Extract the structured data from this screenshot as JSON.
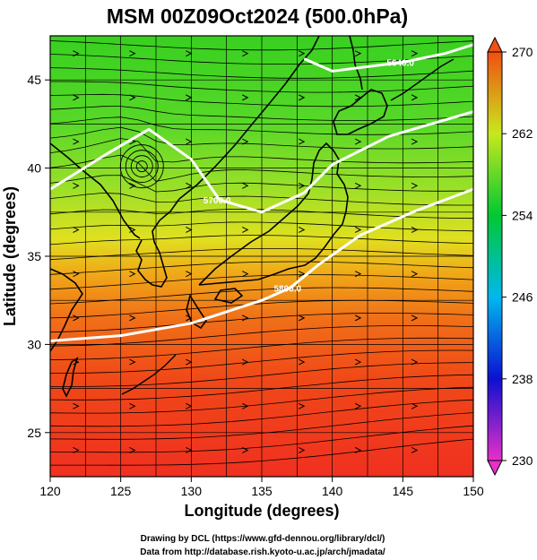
{
  "title": "MSM 00Z09Oct2024 (500.0hPa)",
  "chart_data": {
    "type": "heatmap",
    "title": "MSM 00Z09Oct2024 (500.0hPa)",
    "xlabel": "Longitude (degrees)",
    "ylabel": "Latitude  (degrees)",
    "xlim": [
      120,
      150
    ],
    "ylim": [
      22.5,
      47.5
    ],
    "xticks": [
      120,
      125,
      130,
      135,
      140,
      145,
      150
    ],
    "yticks": [
      25,
      30,
      35,
      40,
      45
    ],
    "grid": true,
    "colorbar": {
      "min": 230,
      "max": 270,
      "ticks": [
        230,
        238,
        246,
        254,
        262,
        270
      ],
      "colors": [
        "#e830c8",
        "#0c10d0",
        "#00b8ee",
        "#00c832",
        "#c8e81e",
        "#f05010"
      ]
    },
    "contours": [
      {
        "label": "5800.0",
        "points": [
          [
            120,
            30.2
          ],
          [
            125,
            30.5
          ],
          [
            130,
            31.2
          ],
          [
            135,
            32.5
          ],
          [
            137,
            33.2
          ],
          [
            139,
            34.5
          ],
          [
            142,
            36.2
          ],
          [
            146,
            37.6
          ],
          [
            150,
            38.8
          ]
        ]
      },
      {
        "label": "5700.0",
        "points": [
          [
            120,
            38.8
          ],
          [
            122,
            39.8
          ],
          [
            124,
            40.8
          ],
          [
            127,
            42.2
          ],
          [
            130,
            40.5
          ],
          [
            132,
            38.2
          ],
          [
            135,
            37.5
          ],
          [
            138,
            38.6
          ],
          [
            140,
            40.2
          ],
          [
            144,
            41.8
          ],
          [
            150,
            43.2
          ]
        ]
      },
      {
        "label": "5640.0",
        "points": [
          [
            138,
            46.2
          ],
          [
            140,
            45.5
          ],
          [
            142,
            45.7
          ],
          [
            145,
            46.0
          ],
          [
            148,
            46.5
          ],
          [
            150,
            47.0
          ]
        ]
      }
    ],
    "cyclone_center": [
      126.5,
      40.1
    ],
    "field_description": "Temperature color field: green in north (~254-258), yellow-orange mid (~262-266), red in south (~268-270); streamlines of 500 hPa wind"
  },
  "credits": {
    "line1": "Drawing by DCL (https://www.gfd-dennou.org/library/dcl/)",
    "line2": "Data from http://database.rish.kyoto-u.ac.jp/arch/jmadata/"
  }
}
